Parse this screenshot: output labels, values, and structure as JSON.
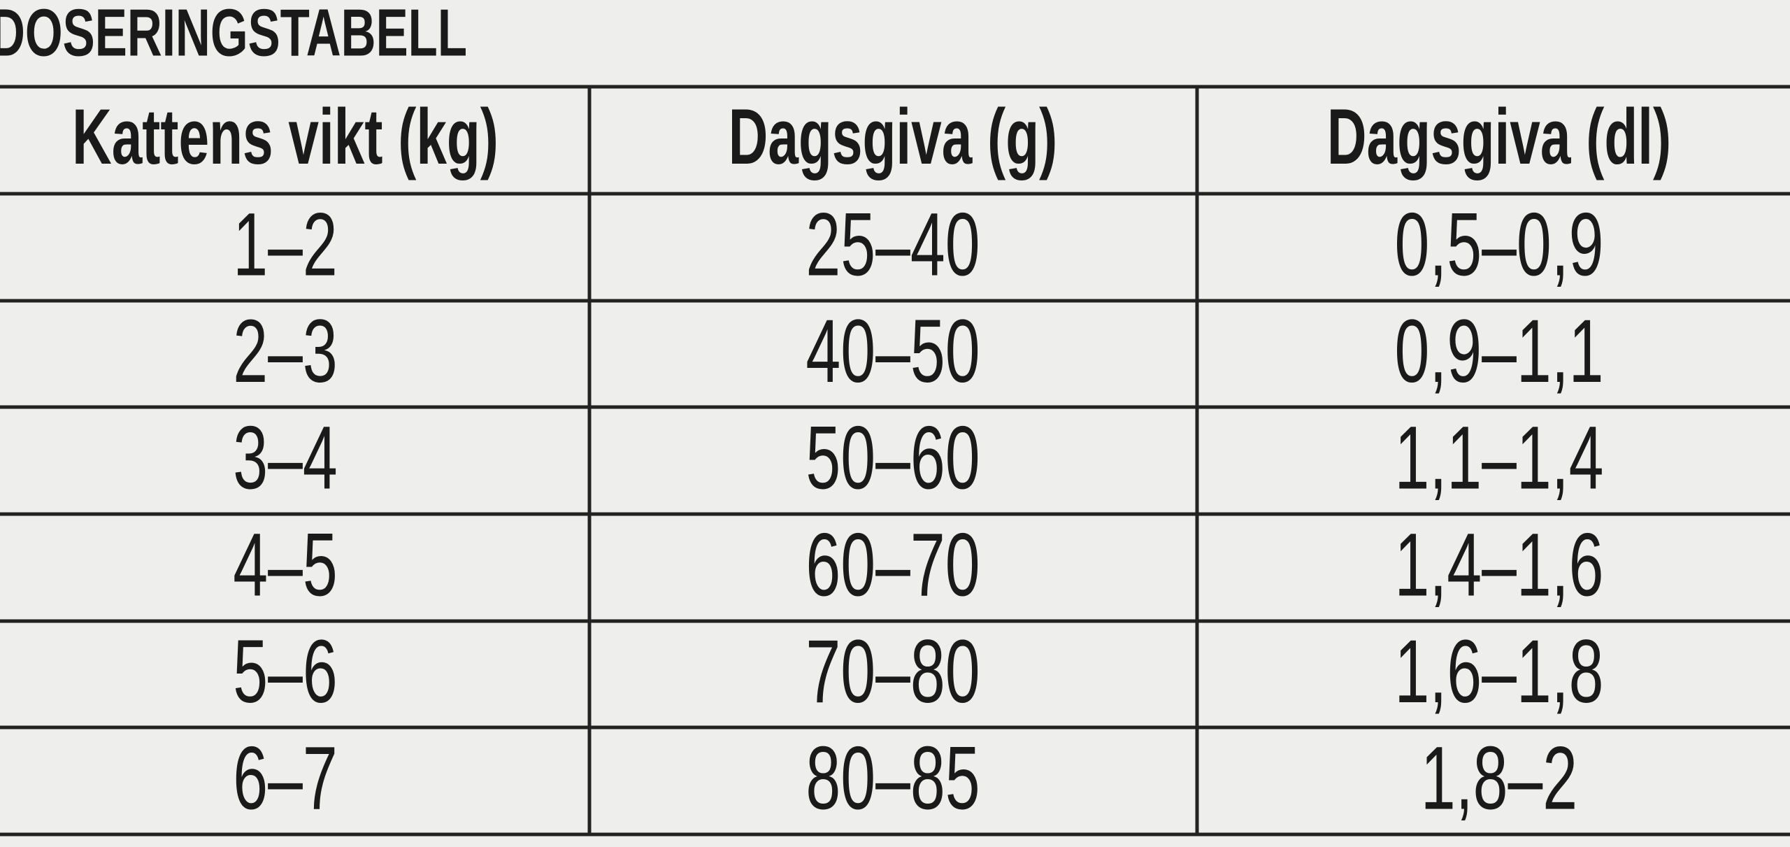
{
  "title": "DOSERINGSTABELL",
  "table": {
    "header": [
      "Kattens vikt (kg)",
      "Dagsgiva (g)",
      "Dagsgiva (dl)"
    ],
    "rows": [
      [
        "1–2",
        "25–40",
        "0,5–0,9"
      ],
      [
        "2–3",
        "40–50",
        "0,9–1,1"
      ],
      [
        "3–4",
        "50–60",
        "1,1–1,4"
      ],
      [
        "4–5",
        "60–70",
        "1,4–1,6"
      ],
      [
        "5–6",
        "70–80",
        "1,6–1,8"
      ],
      [
        "6–7",
        "80–85",
        "1,8–2"
      ]
    ]
  }
}
